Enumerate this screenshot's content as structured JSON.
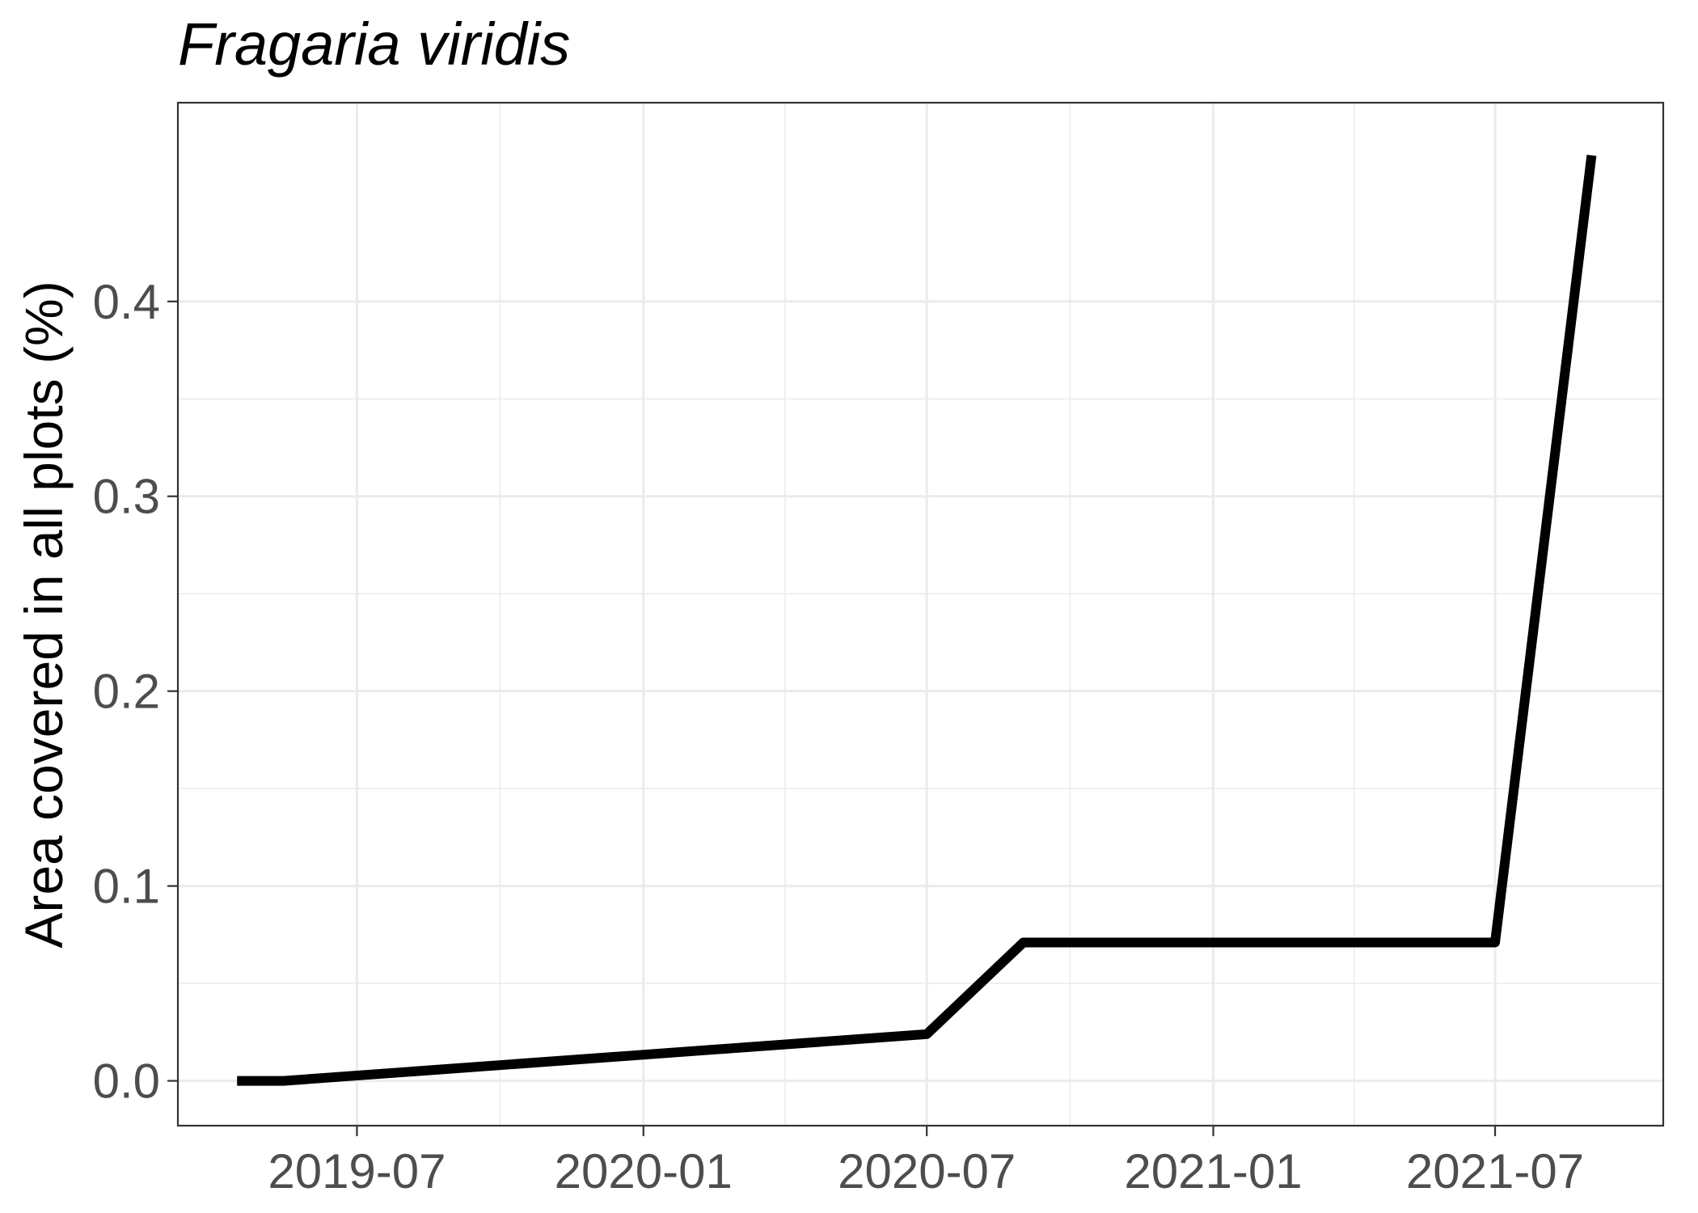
{
  "chart_data": {
    "type": "line",
    "title": "Fragaria viridis",
    "xlabel": "",
    "ylabel": "Area covered in all plots (%)",
    "x_ticks": [
      "2019-07",
      "2020-01",
      "2020-07",
      "2021-01",
      "2021-07"
    ],
    "y_ticks": [
      "0.0",
      "0.1",
      "0.2",
      "0.3",
      "0.4"
    ],
    "xlim": [
      "2019-03-08",
      "2021-10-17"
    ],
    "ylim": [
      -0.023,
      0.502
    ],
    "grid": true,
    "legend": "none",
    "series": [
      {
        "x": [
          "2019-04-15",
          "2019-05-15",
          "2020-07-01",
          "2020-09-01",
          "2021-07-01",
          "2021-09-01"
        ],
        "values": [
          0.0,
          0.0,
          0.024,
          0.071,
          0.071,
          0.475
        ],
        "color": "#000000"
      }
    ]
  }
}
